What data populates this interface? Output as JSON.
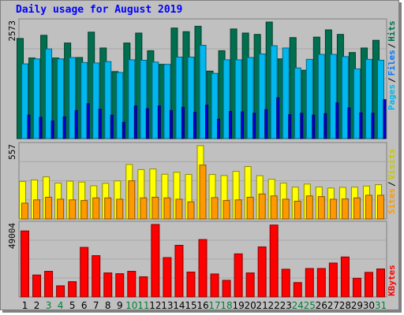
{
  "chart_data": {
    "type": "bar",
    "title": "Daily usage for August 2019",
    "categories": [
      "1",
      "2",
      "3",
      "4",
      "5",
      "6",
      "7",
      "8",
      "9",
      "10",
      "11",
      "12",
      "13",
      "14",
      "15",
      "16",
      "17",
      "18",
      "19",
      "20",
      "21",
      "22",
      "23",
      "24",
      "25",
      "26",
      "27",
      "28",
      "29",
      "30",
      "31"
    ],
    "weekend_days": [
      "3",
      "4",
      "10",
      "11",
      "17",
      "18",
      "24",
      "25",
      "31"
    ],
    "panels": [
      {
        "id": "hits_files_pages",
        "max_label": "2573",
        "ylim": [
          0,
          2573
        ],
        "series": [
          {
            "name": "Hits",
            "color": "#006f4f",
            "values": [
              2210,
              1780,
              2280,
              1780,
              2110,
              1790,
              2350,
              2000,
              1480,
              2110,
              2330,
              1940,
              1640,
              2440,
              2360,
              2480,
              1490,
              1940,
              2420,
              2330,
              2300,
              2573,
              1760,
              2230,
              1510,
              2240,
              2400,
              2300,
              1900,
              2000,
              2170
            ]
          },
          {
            "name": "Files",
            "color": "#00b7ef",
            "values": [
              1650,
              1760,
              1980,
              1760,
              1790,
              1680,
              1670,
              1700,
              1460,
              1740,
              1730,
              1690,
              1640,
              1800,
              1800,
              2060,
              1440,
              1740,
              1740,
              1790,
              1870,
              2050,
              2000,
              1560,
              1750,
              1860,
              1860,
              1810,
              1540,
              1750,
              1730
            ]
          },
          {
            "name": "Pages",
            "color": "#0000cf",
            "values": [
              520,
              470,
              390,
              480,
              620,
              770,
              650,
              520,
              360,
              720,
              660,
              720,
              620,
              690,
              580,
              740,
              430,
              600,
              590,
              560,
              640,
              900,
              530,
              560,
              520,
              550,
              790,
              680,
              570,
              560,
              860
            ]
          }
        ]
      },
      {
        "id": "visits_sites",
        "max_label": "557",
        "ylim": [
          0,
          557
        ],
        "series": [
          {
            "name": "Visits",
            "color": "#ffff00",
            "values": [
              285,
              296,
              320,
              273,
              287,
              280,
              252,
              271,
              289,
              414,
              375,
              380,
              340,
              355,
              338,
              557,
              338,
              330,
              362,
              398,
              329,
              302,
              273,
              242,
              265,
              243,
              235,
              240,
              242,
              250,
              260
            ]
          },
          {
            "name": "Sites",
            "color": "#ff9900",
            "values": [
              120,
              145,
              165,
              150,
              145,
              140,
              160,
              160,
              150,
              290,
              160,
              165,
              160,
              150,
              130,
              410,
              162,
              140,
              145,
              165,
              190,
              175,
              150,
              135,
              175,
              170,
              150,
              152,
              160,
              180,
              180
            ]
          }
        ]
      },
      {
        "id": "kbytes",
        "max_label": "49004",
        "ylim": [
          0,
          49004
        ],
        "series": [
          {
            "name": "KBytes",
            "color": "#ff0000",
            "values": [
              44600,
              14800,
              17300,
              7500,
              10300,
              33500,
              27900,
              16200,
              15700,
              17300,
              13600,
              49004,
              26600,
              34900,
              16800,
              38800,
              15500,
              11200,
              29100,
              16200,
              33800,
              48600,
              18700,
              9700,
              19200,
              19200,
              22900,
              27000,
              12600,
              16600,
              18900
            ]
          }
        ]
      }
    ]
  }
}
